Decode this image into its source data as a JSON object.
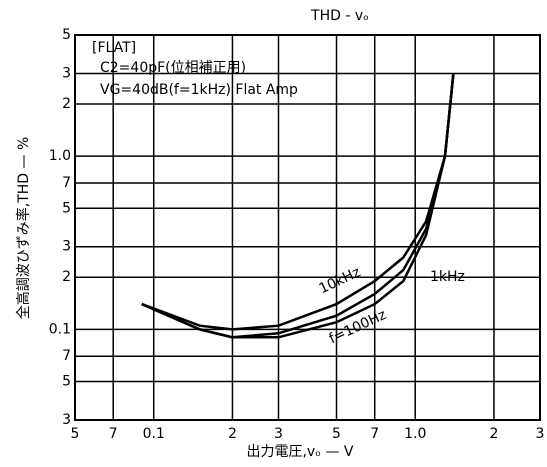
{
  "chart_data": {
    "type": "line",
    "title": "THD - vₒ",
    "x_label": "出力電圧,vₒ — V",
    "y_label": "全高調波ひずみ率,THD — %",
    "annotations": [
      "[FLAT]",
      "C2=40pF(位相補正用)",
      "VG=40dB(f=1kHz) Flat Amp"
    ],
    "log_x": true,
    "log_y": true,
    "grid": true,
    "xlim": [
      0.05,
      3
    ],
    "ylim": [
      0.03,
      5
    ],
    "xticks": [
      {
        "value": 0.05,
        "label": "5"
      },
      {
        "value": 0.07,
        "label": "7"
      },
      0.1,
      {
        "value": 0.2,
        "label": "2"
      },
      {
        "value": 0.3,
        "label": "3"
      },
      {
        "value": 0.5,
        "label": "5"
      },
      {
        "value": 0.7,
        "label": "7"
      },
      {
        "value": 1,
        "label": "1.0"
      },
      2,
      3
    ],
    "yticks": [
      5,
      3,
      2,
      {
        "value": 1,
        "label": "1.0"
      },
      {
        "value": 0.7,
        "label": "7"
      },
      {
        "value": 0.5,
        "label": "5"
      },
      {
        "value": 0.3,
        "label": "3"
      },
      {
        "value": 0.2,
        "label": "2"
      },
      0.1,
      {
        "value": 0.07,
        "label": "7"
      },
      {
        "value": 0.05,
        "label": "5"
      },
      {
        "value": 0.03,
        "label": "3"
      }
    ],
    "x": [
      0.09,
      0.15,
      0.2,
      0.3,
      0.5,
      0.7,
      0.9,
      1.1,
      1.3,
      1.4
    ],
    "series": [
      {
        "name": "10kHz",
        "color": "#000000",
        "values": [
          0.14,
          0.105,
          0.1,
          0.105,
          0.14,
          0.19,
          0.26,
          0.42,
          1.0,
          3.0
        ]
      },
      {
        "name": "1kHz",
        "color": "#000000",
        "values": [
          0.14,
          0.1,
          0.09,
          0.095,
          0.12,
          0.16,
          0.22,
          0.38,
          1.0,
          3.0
        ]
      },
      {
        "name": "f=100Hz",
        "color": "#000000",
        "values": [
          0.14,
          0.1,
          0.09,
          0.09,
          0.11,
          0.14,
          0.19,
          0.35,
          1.0,
          3.0
        ]
      }
    ]
  }
}
